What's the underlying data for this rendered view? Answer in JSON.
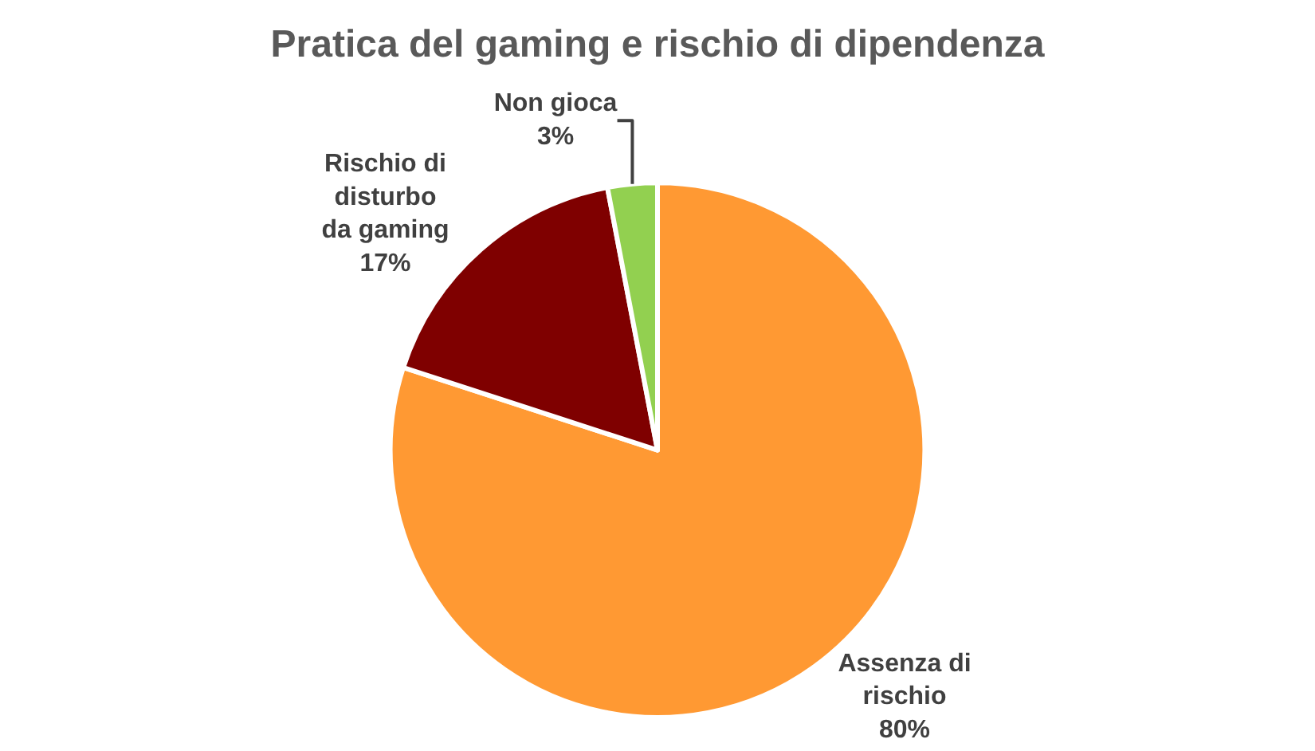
{
  "chart_data": {
    "type": "pie",
    "title": "Pratica del gaming e rischio di dipendenza",
    "categories": [
      "Assenza di rischio",
      "Rischio di disturbo da gaming",
      "Non gioca"
    ],
    "values": [
      80,
      17,
      3
    ],
    "colors": [
      "#ff9933",
      "#7f0000",
      "#92d050"
    ],
    "value_labels": [
      "80%",
      "17%",
      "3%"
    ],
    "legend": false
  }
}
